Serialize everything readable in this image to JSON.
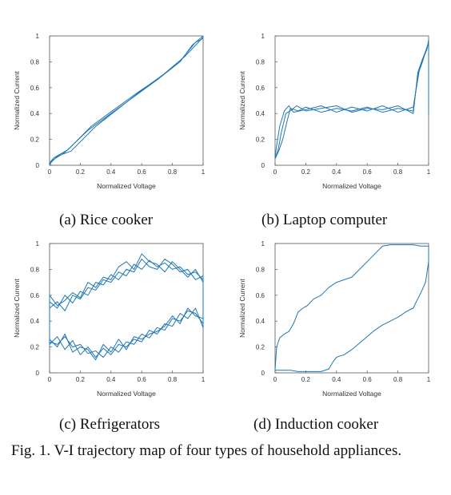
{
  "chart_data": [
    {
      "type": "line",
      "caption": "(a) Rice cooker",
      "xlabel": "Normalized Voltage",
      "ylabel": "Normalized Current",
      "xlim": [
        0,
        1
      ],
      "ylim": [
        0,
        1
      ],
      "xticks": [
        "0",
        "0.2",
        "0.4",
        "0.6",
        "0.8",
        "1"
      ],
      "yticks": [
        "0",
        "0.2",
        "0.4",
        "0.6",
        "0.8",
        "1"
      ],
      "color": "#1f77b4",
      "series": [
        {
          "x": [
            0,
            0.02,
            0.1,
            0.25,
            0.4,
            0.55,
            0.7,
            0.85,
            0.93,
            1.0
          ],
          "y": [
            0.0,
            0.04,
            0.1,
            0.27,
            0.4,
            0.53,
            0.66,
            0.8,
            0.93,
            1.0
          ]
        },
        {
          "x": [
            0,
            0.03,
            0.12,
            0.27,
            0.42,
            0.57,
            0.72,
            0.86,
            0.95,
            1.0
          ],
          "y": [
            0.02,
            0.06,
            0.12,
            0.3,
            0.43,
            0.56,
            0.68,
            0.82,
            0.95,
            0.98
          ]
        },
        {
          "x": [
            0,
            0.05,
            0.14,
            0.3,
            0.45,
            0.6,
            0.75,
            0.88,
            0.96,
            1.0
          ],
          "y": [
            0.01,
            0.07,
            0.11,
            0.3,
            0.44,
            0.58,
            0.71,
            0.84,
            0.94,
            0.99
          ]
        }
      ]
    },
    {
      "type": "line",
      "caption": "(b) Laptop computer",
      "xlabel": "Normalized Voltage",
      "ylabel": "Normalized Current",
      "xlim": [
        0,
        1
      ],
      "ylim": [
        0,
        1
      ],
      "xticks": [
        "0",
        "0.2",
        "0.4",
        "0.6",
        "0.8",
        "1"
      ],
      "yticks": [
        "0",
        "0.2",
        "0.4",
        "0.6",
        "0.8",
        "1"
      ],
      "color": "#1f77b4",
      "series": [
        {
          "x": [
            0,
            0.02,
            0.05,
            0.08,
            0.1,
            0.15,
            0.2,
            0.3,
            0.4,
            0.5,
            0.6,
            0.7,
            0.8,
            0.9,
            0.93,
            0.96,
            0.98,
            1.0,
            1.0
          ],
          "y": [
            0.05,
            0.1,
            0.2,
            0.35,
            0.44,
            0.42,
            0.45,
            0.41,
            0.44,
            0.42,
            0.45,
            0.41,
            0.44,
            0.42,
            0.7,
            0.8,
            0.88,
            0.95,
            0.42
          ]
        },
        {
          "x": [
            0,
            0.01,
            0.03,
            0.06,
            0.09,
            0.12,
            0.2,
            0.3,
            0.4,
            0.5,
            0.6,
            0.7,
            0.8,
            0.9,
            0.94,
            0.97,
            0.99,
            1.0,
            1.0
          ],
          "y": [
            0.07,
            0.15,
            0.3,
            0.42,
            0.46,
            0.41,
            0.43,
            0.46,
            0.41,
            0.45,
            0.42,
            0.46,
            0.41,
            0.45,
            0.74,
            0.84,
            0.9,
            0.97,
            0.4
          ]
        },
        {
          "x": [
            0,
            0.02,
            0.04,
            0.07,
            0.11,
            0.14,
            0.2,
            0.3,
            0.4,
            0.5,
            0.6,
            0.7,
            0.8,
            0.9,
            0.93,
            0.96,
            0.99,
            1.0,
            1.0
          ],
          "y": [
            0.06,
            0.12,
            0.25,
            0.4,
            0.43,
            0.46,
            0.42,
            0.44,
            0.46,
            0.41,
            0.44,
            0.43,
            0.46,
            0.4,
            0.72,
            0.82,
            0.91,
            0.94,
            0.44
          ]
        }
      ]
    },
    {
      "type": "line",
      "caption": "(c) Refrigerators",
      "xlabel": "Normalized Voltage",
      "ylabel": "Normalized Current",
      "xlim": [
        0,
        1
      ],
      "ylim": [
        0,
        1
      ],
      "xticks": [
        "0",
        "0.2",
        "0.4",
        "0.6",
        "0.8",
        "1"
      ],
      "yticks": [
        "0",
        "0.2",
        "0.4",
        "0.6",
        "0.8",
        "1"
      ],
      "color": "#1f77b4",
      "series": [
        {
          "x": [
            0,
            0.05,
            0.1,
            0.15,
            0.2,
            0.25,
            0.3,
            0.35,
            0.4,
            0.45,
            0.5,
            0.55,
            0.6,
            0.65,
            0.7,
            0.75,
            0.8,
            0.85,
            0.9,
            0.95,
            1.0,
            1.0,
            0.95,
            0.9,
            0.85,
            0.8,
            0.75,
            0.7,
            0.65,
            0.6,
            0.55,
            0.5,
            0.45,
            0.4,
            0.35,
            0.3,
            0.25,
            0.2,
            0.15,
            0.1,
            0.05,
            0,
            0
          ],
          "y": [
            0.5,
            0.55,
            0.48,
            0.6,
            0.57,
            0.66,
            0.64,
            0.72,
            0.7,
            0.78,
            0.75,
            0.84,
            0.8,
            0.87,
            0.82,
            0.85,
            0.8,
            0.82,
            0.76,
            0.78,
            0.72,
            0.35,
            0.5,
            0.42,
            0.46,
            0.36,
            0.38,
            0.3,
            0.33,
            0.24,
            0.26,
            0.2,
            0.22,
            0.14,
            0.19,
            0.12,
            0.2,
            0.14,
            0.25,
            0.18,
            0.28,
            0.22,
            0.5
          ]
        },
        {
          "x": [
            0,
            0.05,
            0.1,
            0.15,
            0.2,
            0.25,
            0.3,
            0.35,
            0.4,
            0.45,
            0.5,
            0.55,
            0.6,
            0.65,
            0.7,
            0.75,
            0.8,
            0.85,
            0.9,
            0.95,
            1.0,
            1.0,
            0.95,
            0.9,
            0.85,
            0.8,
            0.75,
            0.7,
            0.65,
            0.6,
            0.55,
            0.5,
            0.45,
            0.4,
            0.35,
            0.3,
            0.25,
            0.2,
            0.15,
            0.1,
            0.05,
            0,
            0
          ],
          "y": [
            0.55,
            0.5,
            0.6,
            0.54,
            0.63,
            0.6,
            0.7,
            0.68,
            0.76,
            0.72,
            0.8,
            0.78,
            0.88,
            0.82,
            0.8,
            0.88,
            0.84,
            0.78,
            0.8,
            0.72,
            0.75,
            0.38,
            0.46,
            0.48,
            0.4,
            0.42,
            0.33,
            0.35,
            0.27,
            0.3,
            0.22,
            0.24,
            0.16,
            0.2,
            0.12,
            0.17,
            0.15,
            0.22,
            0.2,
            0.28,
            0.22,
            0.24,
            0.55
          ]
        },
        {
          "x": [
            0,
            0.05,
            0.1,
            0.15,
            0.2,
            0.25,
            0.3,
            0.35,
            0.4,
            0.45,
            0.5,
            0.55,
            0.6,
            0.65,
            0.7,
            0.75,
            0.8,
            0.85,
            0.9,
            0.95,
            1.0,
            1.0,
            0.95,
            0.9,
            0.85,
            0.8,
            0.75,
            0.7,
            0.65,
            0.6,
            0.55,
            0.5,
            0.45,
            0.4,
            0.35,
            0.3,
            0.25,
            0.2,
            0.15,
            0.1,
            0.05,
            0,
            0
          ],
          "y": [
            0.6,
            0.52,
            0.56,
            0.62,
            0.58,
            0.7,
            0.66,
            0.74,
            0.72,
            0.82,
            0.86,
            0.8,
            0.92,
            0.86,
            0.84,
            0.78,
            0.86,
            0.8,
            0.74,
            0.8,
            0.7,
            0.42,
            0.44,
            0.5,
            0.38,
            0.44,
            0.36,
            0.32,
            0.3,
            0.26,
            0.28,
            0.18,
            0.26,
            0.16,
            0.22,
            0.1,
            0.18,
            0.2,
            0.16,
            0.3,
            0.2,
            0.26,
            0.6
          ]
        }
      ]
    },
    {
      "type": "line",
      "caption": "(d) Induction cooker",
      "xlabel": "Normalized Voltage",
      "ylabel": "Normalized Current",
      "xlim": [
        0,
        1
      ],
      "ylim": [
        0,
        1
      ],
      "xticks": [
        "0",
        "0.2",
        "0.4",
        "0.6",
        "0.8",
        "1"
      ],
      "yticks": [
        "0",
        "0.2",
        "0.4",
        "0.6",
        "0.8",
        "1"
      ],
      "color": "#1f77b4",
      "series": [
        {
          "x": [
            0,
            0.01,
            0.03,
            0.06,
            0.09,
            0.12,
            0.15,
            0.18,
            0.21,
            0.25,
            0.3,
            0.35,
            0.4,
            0.45,
            0.5,
            0.55,
            0.6,
            0.65,
            0.7,
            0.75,
            0.8,
            0.85,
            0.9,
            0.95,
            1.0,
            1.0,
            0.98,
            0.95,
            0.92,
            0.9,
            0.88,
            0.85,
            0.8,
            0.75,
            0.7,
            0.65,
            0.6,
            0.55,
            0.5,
            0.45,
            0.42,
            0.4,
            0.38,
            0.35,
            0.3,
            0.25,
            0.2,
            0.15,
            0.1,
            0.05,
            0.02,
            0
          ],
          "y": [
            0.02,
            0.2,
            0.27,
            0.3,
            0.32,
            0.38,
            0.47,
            0.5,
            0.52,
            0.57,
            0.6,
            0.66,
            0.7,
            0.72,
            0.74,
            0.8,
            0.86,
            0.92,
            0.98,
            0.99,
            0.99,
            0.99,
            0.99,
            0.98,
            0.98,
            0.86,
            0.7,
            0.62,
            0.55,
            0.5,
            0.49,
            0.47,
            0.43,
            0.4,
            0.37,
            0.33,
            0.28,
            0.23,
            0.18,
            0.14,
            0.13,
            0.12,
            0.09,
            0.03,
            0.01,
            0.01,
            0.01,
            0.01,
            0.02,
            0.02,
            0.02,
            0.02
          ]
        }
      ]
    }
  ],
  "figure_caption": "Fig. 1. V-I trajectory map of four types of household appliances."
}
